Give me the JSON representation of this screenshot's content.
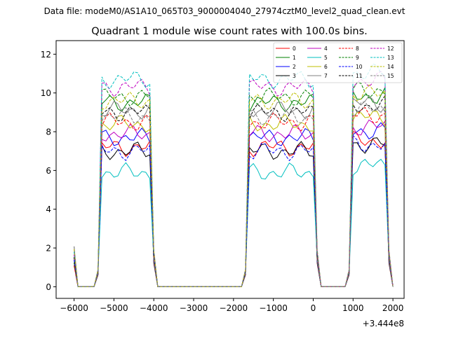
{
  "header": {
    "suptitle": "Data file: modeM0/AS1A10_065T03_9000004040_27974cztM0_level2_quad_clean.evt"
  },
  "chart_data": {
    "type": "line",
    "title": "Quadrant 1 module wise count rates with 100.0s bins.",
    "xlabel": "",
    "ylabel": "",
    "offset_label": "+3.444e8",
    "xlim": [
      -6450,
      2280
    ],
    "ylim": [
      -0.6,
      12.7
    ],
    "xticks": [
      -6000,
      -5000,
      -4000,
      -3000,
      -2000,
      -1000,
      0,
      1000,
      2000
    ],
    "xtick_labels": [
      "−6000",
      "−5000",
      "−4000",
      "−3000",
      "−2000",
      "−1000",
      "0",
      "1000",
      "2000"
    ],
    "yticks": [
      0,
      2,
      4,
      6,
      8,
      10,
      12
    ],
    "ytick_labels": [
      "0",
      "2",
      "4",
      "6",
      "8",
      "10",
      "12"
    ],
    "grid": false,
    "legend_position": "top-right",
    "legend_columns": 4,
    "segments": [
      {
        "x_start": -5300,
        "x_end": -4100
      },
      {
        "x_start": -1600,
        "x_end": 0
      },
      {
        "x_start": 1000,
        "x_end": 1800
      }
    ],
    "series": [
      {
        "name": "0",
        "color": "#ff0000",
        "dash": "solid",
        "level": 7.2
      },
      {
        "name": "1",
        "color": "#008000",
        "dash": "solid",
        "level": 9.5
      },
      {
        "name": "2",
        "color": "#0000ff",
        "dash": "solid",
        "level": 7.7
      },
      {
        "name": "3",
        "color": "#000000",
        "dash": "solid",
        "level": 7.0
      },
      {
        "name": "4",
        "color": "#bf00bf",
        "dash": "solid",
        "level": 7.9
      },
      {
        "name": "5",
        "color": "#00bfbf",
        "dash": "solid",
        "level": 5.9
      },
      {
        "name": "6",
        "color": "#bfbf00",
        "dash": "solid",
        "level": 8.4
      },
      {
        "name": "7",
        "color": "#808080",
        "dash": "solid",
        "level": 9.1
      },
      {
        "name": "8",
        "color": "#ff0000",
        "dash": "dashed",
        "level": 8.5
      },
      {
        "name": "9",
        "color": "#008000",
        "dash": "dashed",
        "level": 9.8
      },
      {
        "name": "10",
        "color": "#0000ff",
        "dash": "dashed",
        "level": 7.0
      },
      {
        "name": "11",
        "color": "#000000",
        "dash": "dashed",
        "level": 9.0
      },
      {
        "name": "12",
        "color": "#bf00bf",
        "dash": "dashed",
        "level": 10.3
      },
      {
        "name": "13",
        "color": "#00bfbf",
        "dash": "dashed",
        "level": 10.7
      },
      {
        "name": "14",
        "color": "#bfbf00",
        "dash": "dashed",
        "level": 9.6
      },
      {
        "name": "15",
        "color": "#808080",
        "dash": "dashed",
        "level": 8.8
      }
    ]
  }
}
